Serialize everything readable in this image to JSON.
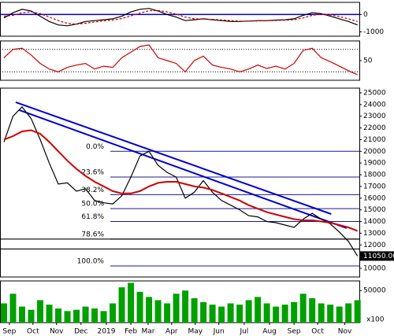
{
  "chart_data": [
    {
      "type": "line",
      "x": [
        0,
        1,
        2,
        3,
        4,
        5,
        6,
        7,
        8,
        9,
        10,
        11,
        12,
        13,
        14,
        15,
        16,
        17,
        18,
        19,
        20,
        21,
        22,
        23,
        24,
        25,
        26,
        27,
        28,
        29,
        30,
        31,
        32,
        33,
        34,
        35,
        36,
        37,
        38,
        39
      ],
      "series": [
        {
          "color": "#000000",
          "values": [
            -200,
            100,
            300,
            200,
            -100,
            -400,
            -600,
            -650,
            -550,
            -400,
            -350,
            -300,
            -250,
            -100,
            150,
            300,
            350,
            200,
            0,
            -150,
            -350,
            -300,
            -250,
            -300,
            -350,
            -400,
            -400,
            -380,
            -350,
            -350,
            -320,
            -300,
            -250,
            -50,
            100,
            50,
            -100,
            -250,
            -400,
            -600
          ]
        },
        {
          "color": "#cc0000",
          "dashed": true,
          "values": [
            -100,
            -50,
            100,
            150,
            50,
            -150,
            -350,
            -500,
            -560,
            -500,
            -430,
            -370,
            -320,
            -230,
            -80,
            80,
            220,
            230,
            150,
            20,
            -150,
            -250,
            -270,
            -280,
            -310,
            -350,
            -380,
            -385,
            -370,
            -360,
            -345,
            -330,
            -300,
            -200,
            -50,
            20,
            -20,
            -120,
            -250,
            -400
          ]
        }
      ],
      "xlim": [
        -0.435,
        39.2
      ],
      "ylim": [
        -1250,
        700
      ],
      "yticks": [
        0,
        -1000
      ],
      "baseline": 0
    },
    {
      "type": "line",
      "x": [
        0,
        1,
        2,
        3,
        4,
        5,
        6,
        7,
        8,
        9,
        10,
        11,
        12,
        13,
        14,
        15,
        16,
        17,
        18,
        19,
        20,
        21,
        22,
        23,
        24,
        25,
        26,
        27,
        28,
        29,
        30,
        31,
        32,
        33,
        34,
        35,
        36,
        37,
        38,
        39
      ],
      "series": [
        {
          "color": "#cc0000",
          "values": [
            55,
            70,
            72,
            60,
            45,
            35,
            30,
            38,
            42,
            45,
            35,
            40,
            38,
            55,
            65,
            75,
            78,
            55,
            50,
            45,
            30,
            50,
            58,
            42,
            38,
            35,
            30,
            35,
            42,
            36,
            40,
            35,
            45,
            68,
            72,
            55,
            48,
            40,
            32,
            25
          ]
        }
      ],
      "xlim": [
        -0.435,
        39.2
      ],
      "ylim": [
        15,
        85
      ],
      "yticks": [
        50
      ],
      "levels": [
        70,
        30
      ]
    },
    {
      "type": "line",
      "x": [
        0,
        1,
        2,
        3,
        4,
        5,
        6,
        7,
        8,
        9,
        10,
        11,
        12,
        13,
        14,
        15,
        16,
        17,
        18,
        19,
        20,
        21,
        22,
        23,
        24,
        25,
        26,
        27,
        28,
        29,
        30,
        31,
        32,
        33,
        34,
        35,
        36,
        37,
        38,
        39
      ],
      "series": [
        {
          "color": "#000000",
          "values": [
            20800,
            23000,
            23800,
            22800,
            21000,
            19000,
            17200,
            17300,
            16600,
            16800,
            15800,
            15600,
            15500,
            16200,
            17800,
            19600,
            20000,
            18800,
            18200,
            17800,
            16000,
            16500,
            17500,
            16500,
            15800,
            15400,
            15000,
            14500,
            14400,
            14000,
            13900,
            13700,
            13500,
            14200,
            14700,
            14200,
            13800,
            13100,
            12300,
            11050
          ]
        },
        {
          "color": "#cc0000",
          "width": 2,
          "values": [
            21000,
            21300,
            21700,
            21800,
            21500,
            20800,
            20000,
            19200,
            18500,
            17900,
            17400,
            17000,
            16600,
            16400,
            16400,
            16600,
            17000,
            17300,
            17400,
            17400,
            17200,
            17000,
            16900,
            16700,
            16400,
            16100,
            15800,
            15400,
            15100,
            14800,
            14600,
            14400,
            14200,
            14100,
            14100,
            14000,
            13900,
            13700,
            13500,
            13200
          ]
        }
      ],
      "xlim": [
        -0.435,
        39.2
      ],
      "ylim": [
        9260,
        25400
      ],
      "yticks": [
        10000,
        11000,
        12000,
        13000,
        14000,
        15000,
        16000,
        17000,
        18000,
        19000,
        20000,
        21000,
        22000,
        23000,
        24000,
        25000
      ],
      "fib_levels": [
        {
          "label": "0.0%",
          "value": 20000
        },
        {
          "label": "23.6%",
          "value": 17800
        },
        {
          "label": "38.2%",
          "value": 16300
        },
        {
          "label": "50.0%",
          "value": 15100
        },
        {
          "label": "61.8%",
          "value": 14000
        },
        {
          "label": "78.6%",
          "value": 12500
        },
        {
          "label": "100.0%",
          "value": 10200
        }
      ],
      "support_lines": [
        12500,
        11650
      ],
      "trendlines": [
        {
          "x": [
            1.3,
            36.1
          ],
          "y": [
            24190,
            14640
          ]
        },
        {
          "x": [
            1.7,
            37.8
          ],
          "y": [
            23520,
            13430
          ]
        }
      ],
      "last_price": {
        "value": 11050,
        "label": "11050.00"
      }
    },
    {
      "type": "bar",
      "x": [
        0,
        1,
        2,
        3,
        4,
        5,
        6,
        7,
        8,
        9,
        10,
        11,
        12,
        13,
        14,
        15,
        16,
        17,
        18,
        19,
        20,
        21,
        22,
        23,
        24,
        25,
        26,
        27,
        28,
        29,
        30,
        31,
        32,
        33,
        34,
        35,
        36,
        37,
        38,
        39
      ],
      "values": [
        30000,
        45000,
        25000,
        20000,
        35000,
        28000,
        22000,
        18000,
        20000,
        25000,
        22000,
        18000,
        30000,
        55000,
        62000,
        48000,
        40000,
        35000,
        30000,
        45000,
        50000,
        38000,
        32000,
        28000,
        25000,
        30000,
        28000,
        35000,
        40000,
        30000,
        25000,
        28000,
        32000,
        45000,
        38000,
        30000,
        28000,
        25000,
        30000,
        35000
      ],
      "color": "#00a000",
      "xlim": [
        -0.435,
        39.2
      ],
      "ylim": [
        0,
        65000
      ],
      "yticks": [
        50000
      ],
      "unit_label": "x100",
      "xticks": [
        {
          "value": 0.6,
          "label": "Sep"
        },
        {
          "value": 3.2,
          "label": "Oct"
        },
        {
          "value": 5.8,
          "label": "Nov"
        },
        {
          "value": 8.5,
          "label": "Dec"
        },
        {
          "value": 11.3,
          "label": "2019"
        },
        {
          "value": 14,
          "label": "Feb"
        },
        {
          "value": 15.9,
          "label": "Mar"
        },
        {
          "value": 18.5,
          "label": "Apr"
        },
        {
          "value": 21.1,
          "label": "May"
        },
        {
          "value": 23.7,
          "label": "Jun"
        },
        {
          "value": 26.5,
          "label": "Jul"
        },
        {
          "value": 29.3,
          "label": "Aug"
        },
        {
          "value": 32,
          "label": "Sep"
        },
        {
          "value": 34.6,
          "label": "Oct"
        },
        {
          "value": 37.6,
          "label": "Nov"
        }
      ]
    }
  ]
}
